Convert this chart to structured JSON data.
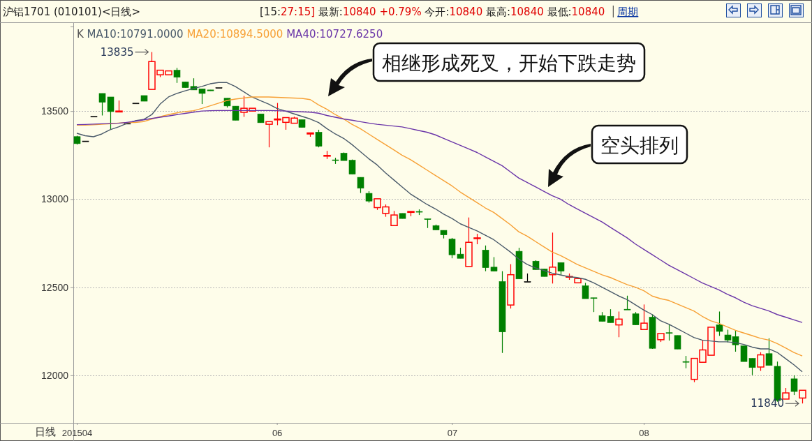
{
  "chart_data": {
    "type": "candlestick",
    "title": "沪铝1701 (010101)<日线>",
    "subtitle": "[15:27:15] 最新:10840 +0.79% 今开:10840 最高:10840 最低:10840",
    "xlabel": "日线",
    "legend_title": "K",
    "categories": [
      "201504",
      null,
      null,
      null,
      null,
      null,
      null,
      null,
      null,
      null,
      null,
      null,
      null,
      null,
      null,
      null,
      null,
      null,
      null,
      null,
      null,
      null,
      null,
      null,
      "06",
      null,
      null,
      null,
      null,
      null,
      null,
      null,
      null,
      null,
      null,
      null,
      null,
      null,
      null,
      null,
      null,
      null,
      null,
      null,
      null,
      "07",
      null,
      null,
      null,
      null,
      null,
      null,
      null,
      null,
      null,
      null,
      null,
      null,
      null,
      null,
      null,
      null,
      null,
      null,
      null,
      null,
      null,
      null,
      "08",
      null,
      null,
      null,
      null,
      null,
      null,
      null,
      null,
      null,
      null,
      null,
      null,
      null,
      null,
      null,
      null,
      null,
      null,
      null
    ],
    "ohlc": [
      [
        13355,
        13360,
        13310,
        13315
      ],
      [
        13330,
        13330,
        13330,
        13330
      ],
      [
        13470,
        13470,
        13470,
        13470
      ],
      [
        13600,
        13600,
        13475,
        13550
      ],
      [
        13580,
        13580,
        13395,
        13497
      ],
      [
        13495,
        13560,
        13495,
        13500
      ],
      [
        13430,
        13430,
        13430,
        13430
      ],
      [
        13545,
        13545,
        13545,
        13545
      ],
      [
        13588,
        13588,
        13556,
        13556
      ],
      [
        13623,
        13835,
        13623,
        13781
      ],
      [
        13706,
        13732,
        13693,
        13732
      ],
      [
        13706,
        13728,
        13706,
        13728
      ],
      [
        13732,
        13745,
        13660,
        13692
      ],
      [
        13666,
        13666,
        13633,
        13633
      ],
      [
        13640,
        13686,
        13620,
        13620
      ],
      [
        13626,
        13626,
        13540,
        13600
      ],
      [
        13620,
        13620,
        13615,
        13615
      ],
      [
        13633,
        13633,
        13633,
        13633
      ],
      [
        13573,
        13573,
        13520,
        13529
      ],
      [
        13528,
        13528,
        13448,
        13448
      ],
      [
        13493,
        13586,
        13467,
        13516
      ],
      [
        13500,
        13516,
        13500,
        13516
      ],
      [
        13484,
        13484,
        13434,
        13434
      ],
      [
        13425,
        13440,
        13294,
        13440
      ],
      [
        13450,
        13546,
        13420,
        13455
      ],
      [
        13436,
        13463,
        13394,
        13463
      ],
      [
        13431,
        13468,
        13431,
        13460
      ],
      [
        13451,
        13451,
        13407,
        13407
      ],
      [
        13370,
        13376,
        13354,
        13376
      ],
      [
        13380,
        13394,
        13294,
        13300
      ],
      [
        13244,
        13274,
        13228,
        13248
      ],
      [
        13223,
        13235,
        13200,
        13219
      ],
      [
        13261,
        13265,
        13219,
        13219
      ],
      [
        13221,
        13225,
        13142,
        13142
      ],
      [
        13124,
        13124,
        13035,
        13062
      ],
      [
        13033,
        13045,
        12980,
        12989
      ],
      [
        12952,
        13002,
        12939,
        13002
      ],
      [
        12919,
        12970,
        12900,
        12956
      ],
      [
        12850,
        12933,
        12850,
        12910
      ],
      [
        12919,
        12919,
        12890,
        12890
      ],
      [
        12925,
        12930,
        12903,
        12930
      ],
      [
        12930,
        12942,
        12910,
        12926
      ],
      [
        12888,
        12888,
        12836,
        12885
      ],
      [
        12850,
        12856,
        12825,
        12825
      ],
      [
        12823,
        12823,
        12777,
        12797
      ],
      [
        12773,
        12780,
        12664,
        12684
      ],
      [
        12688,
        12724,
        12664,
        12664
      ],
      [
        12618,
        12896,
        12618,
        12755
      ],
      [
        12776,
        12803,
        12744,
        12780
      ],
      [
        12711,
        12737,
        12591,
        12611
      ],
      [
        12614,
        12671,
        12591,
        12591
      ],
      [
        12532,
        12591,
        12127,
        12246
      ],
      [
        12399,
        12631,
        12379,
        12571
      ],
      [
        12704,
        12724,
        12547,
        12547
      ],
      [
        12532,
        12578,
        12532,
        12532
      ],
      [
        12648,
        12653,
        12600,
        12600
      ],
      [
        12604,
        12604,
        12561,
        12561
      ],
      [
        12571,
        12810,
        12521,
        12614
      ],
      [
        12640,
        12640,
        12571,
        12591
      ],
      [
        12558,
        12578,
        12542,
        12561
      ],
      [
        12525,
        12549,
        12525,
        12549
      ],
      [
        12508,
        12525,
        12435,
        12435
      ],
      [
        12440,
        12440,
        12359,
        12437
      ],
      [
        12339,
        12359,
        12306,
        12306
      ],
      [
        12335,
        12375,
        12299,
        12299
      ],
      [
        12286,
        12362,
        12216,
        12319
      ],
      [
        12375,
        12452,
        12373,
        12373
      ],
      [
        12349,
        12359,
        12286,
        12286
      ],
      [
        12260,
        12402,
        12260,
        12296
      ],
      [
        12330,
        12346,
        12150,
        12153
      ],
      [
        12202,
        12237,
        12189,
        12237
      ],
      [
        12242,
        12290,
        12197,
        12238
      ],
      [
        12226,
        12226,
        12149,
        12149
      ],
      [
        12078,
        12110,
        12040,
        12074
      ],
      [
        11977,
        12096,
        11961,
        12096
      ],
      [
        12074,
        12200,
        12074,
        12144
      ],
      [
        12114,
        12273,
        12114,
        12273
      ],
      [
        12286,
        12362,
        12224,
        12249
      ],
      [
        12229,
        12259,
        12187,
        12200
      ],
      [
        12220,
        12253,
        12134,
        12173
      ],
      [
        12167,
        12167,
        12078,
        12078
      ],
      [
        12096,
        12096,
        12001,
        12044
      ],
      [
        12047,
        12131,
        12025,
        12116
      ],
      [
        12123,
        12210,
        12056,
        12056
      ],
      [
        12051,
        12078,
        11850,
        11857
      ],
      [
        11865,
        11928,
        11865,
        11900
      ],
      [
        11980,
        12000,
        11888,
        11908
      ],
      [
        11871,
        11915,
        11840,
        11915
      ]
    ],
    "colors": [
      "#008000",
      "#000000",
      "#000000",
      "#008000",
      "#008000",
      "#ff0000",
      "#000000",
      "#000000",
      "#008000",
      "#ff0000",
      "#ff0000",
      "#ff0000",
      "#008000",
      "#008000",
      "#008000",
      "#008000",
      "#008000",
      "#000000",
      "#008000",
      "#008000",
      "#ff0000",
      "#ff0000",
      "#008000",
      "#ff0000",
      "#ff0000",
      "#ff0000",
      "#ff0000",
      "#008000",
      "#ff0000",
      "#008000",
      "#ff0000",
      "#008000",
      "#008000",
      "#008000",
      "#008000",
      "#008000",
      "#ff0000",
      "#ff0000",
      "#ff0000",
      "#008000",
      "#ff0000",
      "#008000",
      "#008000",
      "#008000",
      "#008000",
      "#008000",
      "#008000",
      "#ff0000",
      "#ff0000",
      "#008000",
      "#008000",
      "#008000",
      "#ff0000",
      "#008000",
      "#000000",
      "#008000",
      "#008000",
      "#ff0000",
      "#008000",
      "#ff0000",
      "#ff0000",
      "#008000",
      "#008000",
      "#008000",
      "#008000",
      "#ff0000",
      "#008000",
      "#008000",
      "#ff0000",
      "#008000",
      "#ff0000",
      "#008000",
      "#008000",
      "#008000",
      "#ff0000",
      "#ff0000",
      "#ff0000",
      "#008000",
      "#008000",
      "#008000",
      "#008000",
      "#008000",
      "#ff0000",
      "#008000",
      "#008000",
      "#ff0000",
      "#008000",
      "#ff0000"
    ],
    "series": [
      {
        "type": "line",
        "name": "MA10:10791.0000",
        "color": "#4a5a6a",
        "values": [
          13374,
          13360,
          13354,
          13370,
          13394,
          13410,
          13430,
          13445,
          13452,
          13480,
          13540,
          13580,
          13600,
          13615,
          13628,
          13640,
          13655,
          13662,
          13662,
          13640,
          13610,
          13580,
          13560,
          13540,
          13515,
          13500,
          13485,
          13470,
          13455,
          13435,
          13400,
          13370,
          13345,
          13310,
          13270,
          13230,
          13195,
          13150,
          13110,
          13070,
          13030,
          13000,
          12970,
          12945,
          12915,
          12890,
          12860,
          12840,
          12820,
          12795,
          12770,
          12735,
          12700,
          12660,
          12630,
          12610,
          12595,
          12580,
          12570,
          12560,
          12555,
          12545,
          12525,
          12500,
          12475,
          12450,
          12430,
          12400,
          12370,
          12345,
          12310,
          12290,
          12265,
          12240,
          12215,
          12200,
          12195,
          12190,
          12190,
          12185,
          12175,
          12160,
          12150,
          12150,
          12130,
          12095,
          12060,
          12020
        ]
      },
      {
        "type": "line",
        "name": "MA20:10894.5000",
        "color": "#f7a035",
        "values": [
          13420,
          13420,
          13422,
          13425,
          13428,
          13432,
          13435,
          13435,
          13440,
          13455,
          13468,
          13480,
          13490,
          13497,
          13502,
          13515,
          13530,
          13545,
          13560,
          13568,
          13574,
          13580,
          13580,
          13580,
          13578,
          13576,
          13574,
          13572,
          13565,
          13535,
          13510,
          13480,
          13455,
          13425,
          13400,
          13370,
          13340,
          13310,
          13280,
          13250,
          13225,
          13195,
          13165,
          13135,
          13105,
          13075,
          13040,
          13010,
          12980,
          12950,
          12925,
          12890,
          12855,
          12815,
          12790,
          12760,
          12730,
          12700,
          12680,
          12655,
          12630,
          12610,
          12590,
          12570,
          12555,
          12535,
          12515,
          12500,
          12480,
          12450,
          12435,
          12425,
          12405,
          12385,
          12365,
          12335,
          12310,
          12295,
          12275,
          12255,
          12240,
          12225,
          12210,
          12200,
          12180,
          12155,
          12130,
          12110
        ]
      },
      {
        "type": "line",
        "name": "MA40:10727.6250",
        "color": "#6a35a8",
        "values": [
          13423,
          13424,
          13426,
          13428,
          13430,
          13431,
          13436,
          13442,
          13450,
          13458,
          13465,
          13472,
          13480,
          13487,
          13494,
          13500,
          13502,
          13503,
          13503,
          13503,
          13503,
          13503,
          13503,
          13503,
          13502,
          13500,
          13498,
          13496,
          13494,
          13488,
          13475,
          13465,
          13455,
          13448,
          13440,
          13432,
          13425,
          13420,
          13415,
          13410,
          13400,
          13390,
          13380,
          13365,
          13345,
          13325,
          13305,
          13285,
          13265,
          13240,
          13215,
          13190,
          13155,
          13120,
          13095,
          13070,
          13045,
          13020,
          13000,
          12970,
          12945,
          12920,
          12895,
          12870,
          12840,
          12810,
          12780,
          12745,
          12715,
          12685,
          12655,
          12625,
          12600,
          12575,
          12550,
          12525,
          12505,
          12485,
          12460,
          12440,
          12415,
          12395,
          12380,
          12365,
          12345,
          12330,
          12315,
          12300
        ]
      }
    ],
    "ylim": [
      11730,
      13980
    ],
    "yticks": [
      12000,
      12500,
      13000,
      13500
    ],
    "grid": "y",
    "legend": "top left",
    "annotations": [
      "13835",
      "11840",
      "相继形成死叉，开始下跌走势",
      "空头排列",
      "周期"
    ]
  }
}
